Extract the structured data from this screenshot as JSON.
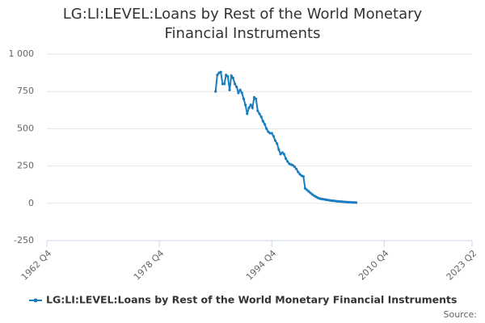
{
  "chart_data": {
    "type": "line",
    "title": "LG:LI:LEVEL:Loans by Rest of the World Monetary Financial Instruments",
    "x": [
      "1986 Q4",
      "1987 Q1",
      "1987 Q2",
      "1987 Q3",
      "1987 Q4",
      "1988 Q1",
      "1988 Q2",
      "1988 Q3",
      "1988 Q4",
      "1989 Q1",
      "1989 Q2",
      "1989 Q3",
      "1989 Q4",
      "1990 Q1",
      "1990 Q2",
      "1990 Q3",
      "1990 Q4",
      "1991 Q1",
      "1991 Q2",
      "1991 Q3",
      "1991 Q4",
      "1992 Q1",
      "1992 Q2",
      "1992 Q3",
      "1992 Q4",
      "1993 Q1",
      "1993 Q2",
      "1993 Q3",
      "1993 Q4",
      "1994 Q1",
      "1994 Q2",
      "1994 Q3",
      "1994 Q4",
      "1995 Q1",
      "1995 Q2",
      "1995 Q3",
      "1995 Q4",
      "1996 Q1",
      "1996 Q2",
      "1996 Q3",
      "1996 Q4",
      "1997 Q1",
      "1997 Q2",
      "1997 Q3",
      "1997 Q4",
      "1998 Q1",
      "1998 Q2",
      "1998 Q3",
      "1998 Q4",
      "1999 Q1",
      "1999 Q2",
      "1999 Q3",
      "1999 Q4",
      "2000 Q1",
      "2000 Q2",
      "2000 Q3",
      "2000 Q4",
      "2001 Q1",
      "2001 Q2",
      "2001 Q3",
      "2001 Q4",
      "2002 Q1",
      "2002 Q2",
      "2002 Q3",
      "2002 Q4",
      "2003 Q1",
      "2003 Q2",
      "2003 Q3",
      "2003 Q4",
      "2004 Q1",
      "2004 Q2",
      "2004 Q3",
      "2004 Q4",
      "2005 Q1",
      "2005 Q2",
      "2005 Q3",
      "2005 Q4",
      "2006 Q1",
      "2006 Q2",
      "2006 Q3",
      "2006 Q4"
    ],
    "series": [
      {
        "name": "LG:LI:LEVEL:Loans by Rest of the World Monetary Financial Instruments",
        "color": "#1a7dc0",
        "values": [
          750,
          860,
          875,
          880,
          800,
          800,
          860,
          850,
          760,
          855,
          840,
          800,
          780,
          740,
          760,
          740,
          700,
          660,
          600,
          640,
          660,
          640,
          710,
          700,
          620,
          600,
          580,
          550,
          530,
          500,
          480,
          470,
          470,
          450,
          420,
          400,
          360,
          330,
          340,
          330,
          300,
          280,
          265,
          260,
          255,
          245,
          230,
          210,
          195,
          185,
          180,
          100,
          90,
          80,
          70,
          60,
          52,
          45,
          38,
          33,
          30,
          28,
          26,
          24,
          22,
          20,
          18,
          17,
          16,
          14,
          13,
          12,
          11,
          10,
          9,
          8,
          8,
          7,
          6,
          6,
          5
        ]
      }
    ],
    "xlim": [
      "1962 Q4",
      "2023 Q2"
    ],
    "xticks": [
      "1962 Q4",
      "1978 Q4",
      "1994 Q4",
      "2010 Q4",
      "2023 Q2"
    ],
    "ylim": [
      -250,
      1000
    ],
    "yticks": [
      -250,
      0,
      250,
      500,
      750,
      {
        "value": 1000,
        "label": "1 000"
      }
    ],
    "grid": true,
    "legend": "bottom",
    "source": "Source:"
  }
}
